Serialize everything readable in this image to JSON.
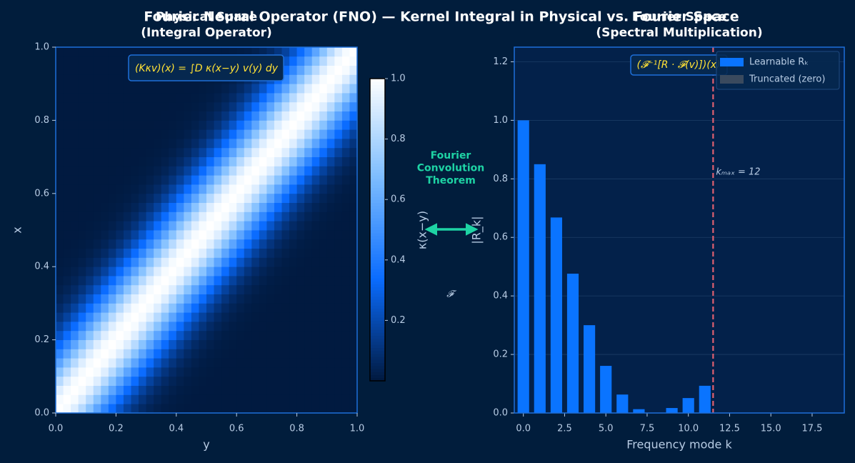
{
  "title": "Fourier Neural Operator (FNO) — Kernel Integral in Physical vs. Fourier Space",
  "annotations": {
    "theorem": [
      "Fourier",
      "Convolution",
      "Theorem"
    ],
    "symbol": "𝓕"
  },
  "chart_data": [
    {
      "type": "heatmap",
      "title": [
        "Physical Space",
        "(Integral Operator)"
      ],
      "x_label": "y",
      "y_label": "x",
      "annotation": "(Kκv)(x) = ∫D κ(x−y) v(y) dy",
      "kernel_values": [
        1,
        0.978,
        0.915,
        0.818,
        0.7,
        0.572,
        0.448,
        0.335,
        0.24,
        0.164,
        0.107,
        0.067,
        0.04,
        0.023,
        0.013,
        0.007,
        0.003,
        0.002,
        0.001,
        0,
        0,
        0,
        0,
        0,
        0,
        0,
        0,
        0,
        0,
        0,
        0,
        0,
        0,
        0,
        0,
        0,
        0,
        0,
        0,
        0
      ],
      "xlim": [
        0,
        1
      ],
      "ylim": [
        0,
        1
      ],
      "xticks": [
        {
          "value": 0,
          "label": "0.0"
        },
        0.2,
        0.4,
        0.6,
        0.8,
        {
          "value": 1,
          "label": "1.0"
        }
      ],
      "yticks": [
        {
          "value": 0,
          "label": "0.0"
        },
        0.2,
        0.4,
        0.6,
        0.8,
        {
          "value": 1,
          "label": "1.0"
        }
      ],
      "cmap": [
        "#011a40",
        "#0a6cff",
        "#7cbcff",
        "#ffffff"
      ],
      "colorbar": {
        "label": "κ(x−y)",
        "lim": [
          0,
          1
        ],
        "ticks": [
          0.2,
          0.4,
          0.6,
          0.8,
          {
            "value": 1,
            "label": "1.0"
          }
        ]
      }
    },
    {
      "type": "bar",
      "title": [
        "Fourier Space",
        "(Spectral Multiplication)"
      ],
      "x_label": "Frequency mode  k",
      "y_label": "|R_k|",
      "annotation": "(𝓕⁻¹[R · 𝓕(v)])(x)",
      "series": [
        {
          "name": "Learnable  Rₖ",
          "color": "#0a74ff",
          "x": [
            0,
            1,
            2,
            3,
            4,
            5,
            6,
            7,
            8,
            9,
            10,
            11
          ],
          "values": [
            1,
            0.85,
            0.668,
            0.476,
            0.3,
            0.161,
            0.063,
            0.013,
            0,
            0.017,
            0.051,
            0.093
          ]
        },
        {
          "name": "Truncated (zero)",
          "color": "#3a4a5e",
          "x": [
            12,
            13,
            14,
            15,
            16,
            17,
            18,
            19
          ],
          "values": [
            0,
            0,
            0,
            0,
            0,
            0,
            0,
            0
          ]
        }
      ],
      "bar_width": 0.7,
      "vline": {
        "x": 11.5,
        "label": "kₘₐₓ = 12",
        "color": "#e06070"
      },
      "xlim": [
        -0.55,
        19.45
      ],
      "ylim": [
        0,
        1.25
      ],
      "xticks": [
        {
          "value": 0,
          "label": "0.0"
        },
        2.5,
        {
          "value": 5,
          "label": "5.0"
        },
        7.5,
        {
          "value": 10,
          "label": "10.0"
        },
        12.5,
        {
          "value": 15,
          "label": "15.0"
        },
        17.5
      ],
      "yticks": [
        {
          "value": 0,
          "label": "0.0"
        },
        0.2,
        0.4,
        0.6,
        0.8,
        {
          "value": 1,
          "label": "1.0"
        },
        {
          "value": 1.2,
          "label": "1.2"
        }
      ],
      "grid": true,
      "legend": "upper right"
    }
  ]
}
